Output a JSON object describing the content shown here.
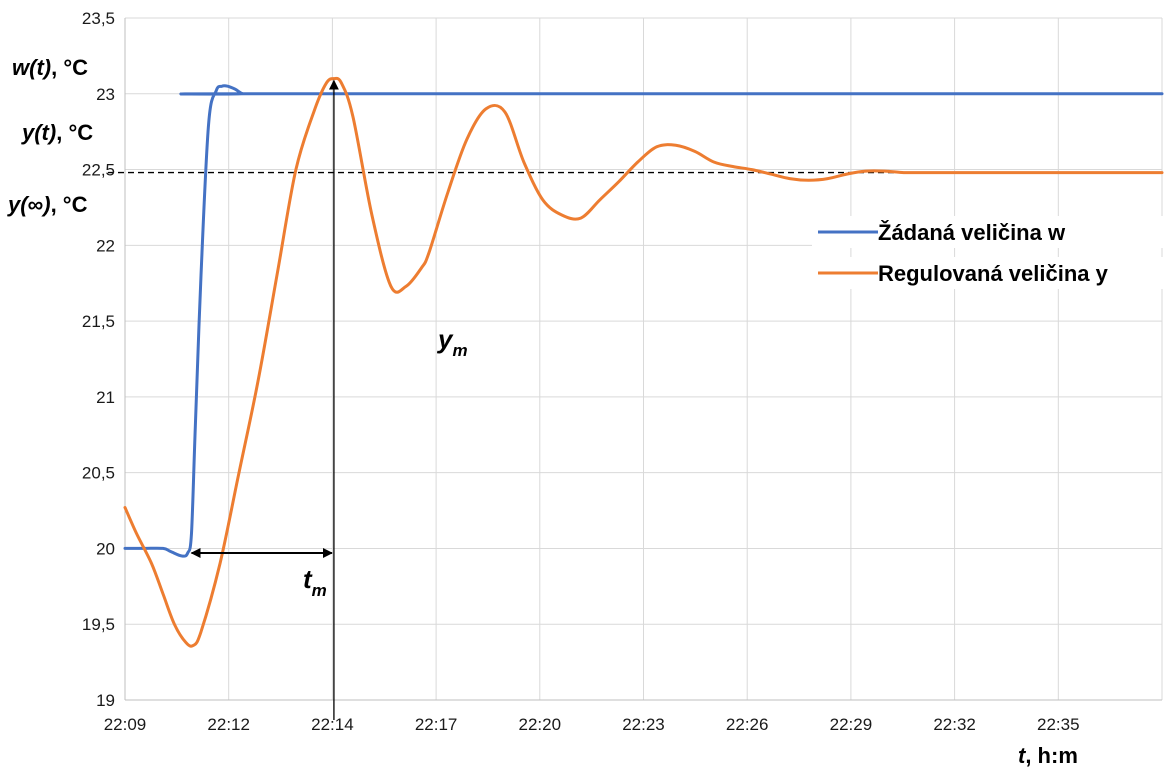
{
  "chart_data": {
    "type": "line",
    "x_ticks": [
      "22:09",
      "22:12",
      "22:14",
      "22:17",
      "22:20",
      "22:23",
      "22:26",
      "22:29",
      "22:32",
      "22:35"
    ],
    "y_ticks": [
      "19",
      "19,5",
      "20",
      "20,5",
      "21",
      "21,5",
      "22",
      "22,5",
      "23",
      "23,5"
    ],
    "ylim": [
      19,
      23.5
    ],
    "xlim_minutes": [
      0,
      27.3
    ],
    "grid": true,
    "legend_position": "right",
    "xlabel": {
      "main": "t",
      "rest": ", h:m"
    },
    "ylabels": [
      {
        "main": "w(t)",
        "rest": ", °C"
      },
      {
        "main": "y(t)",
        "rest": ", °C"
      },
      {
        "main": "y(∞)",
        "rest": ", °C"
      }
    ],
    "steady_state_value": 22.48,
    "annotations": {
      "tm": {
        "base": "t",
        "sub": "m",
        "from_minute": 1.7,
        "to_minute": 5.5
      },
      "ym": {
        "base": "y",
        "sub": "m",
        "at_minute": 5.5
      }
    },
    "series": [
      {
        "name": "Žádaná veličina w",
        "color": "#4472C4",
        "x": [
          0,
          0.5,
          1.0,
          1.2,
          1.5,
          1.65,
          1.75,
          1.85,
          2.0,
          2.2,
          2.4,
          2.55,
          2.7,
          2.9,
          3.1,
          3.3,
          27.3
        ],
        "y": [
          20,
          20,
          20,
          19.98,
          19.95,
          19.97,
          20.1,
          20.8,
          21.8,
          22.8,
          23.02,
          23.05,
          23.05,
          23.03,
          23.0,
          23.0,
          23.0
        ]
      },
      {
        "name": "Regulovaná veličina y",
        "color": "#ED7D31",
        "x": [
          0,
          0.3,
          0.7,
          1.0,
          1.3,
          1.6,
          1.8,
          2.0,
          2.5,
          3.0,
          3.5,
          4.0,
          4.5,
          5.0,
          5.3,
          5.5,
          5.7,
          6.0,
          6.5,
          7.0,
          7.4,
          7.8,
          8.0,
          8.5,
          9.0,
          9.5,
          10.0,
          10.5,
          11.0,
          11.5,
          12.0,
          12.5,
          13.0,
          13.5,
          14.0,
          14.5,
          15.0,
          15.5,
          16.0,
          16.5,
          17.0,
          17.5,
          18.0,
          18.5,
          19.0,
          19.5,
          20.0,
          20.5,
          21.0,
          21.5,
          22.0,
          22.5,
          23.0,
          23.5,
          24.0,
          24.5,
          25.0,
          25.5,
          26.0,
          26.5,
          27.3
        ],
        "y": [
          20.27,
          20.1,
          19.9,
          19.7,
          19.5,
          19.38,
          19.36,
          19.45,
          19.9,
          20.5,
          21.1,
          21.8,
          22.5,
          22.9,
          23.07,
          23.1,
          23.07,
          22.85,
          22.2,
          21.73,
          21.73,
          21.85,
          21.95,
          22.35,
          22.7,
          22.9,
          22.88,
          22.55,
          22.3,
          22.2,
          22.18,
          22.3,
          22.42,
          22.55,
          22.65,
          22.66,
          22.62,
          22.55,
          22.52,
          22.5,
          22.47,
          22.44,
          22.43,
          22.44,
          22.47,
          22.49,
          22.49,
          22.48,
          22.48,
          22.48,
          22.48,
          22.48,
          22.48,
          22.48,
          22.48,
          22.48,
          22.48,
          22.48,
          22.48,
          22.48,
          22.48
        ]
      }
    ]
  }
}
